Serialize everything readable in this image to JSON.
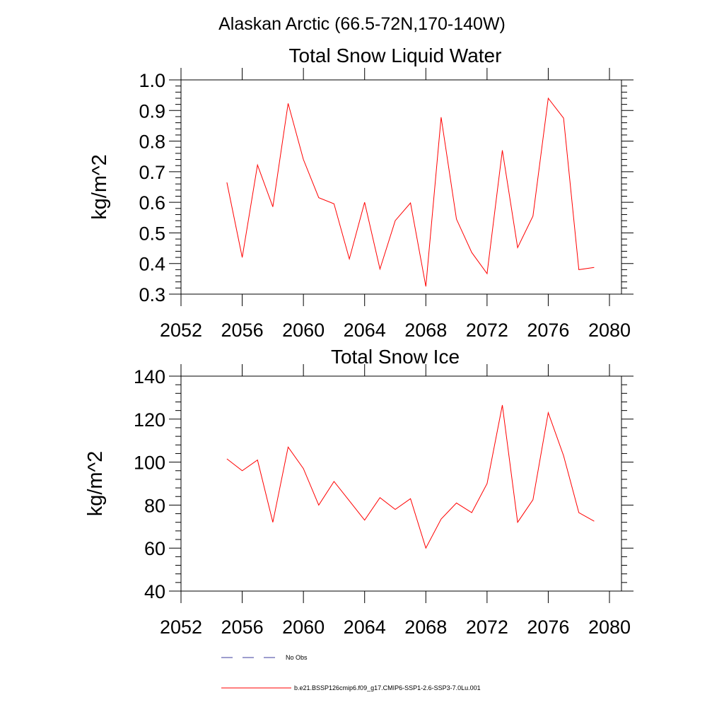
{
  "figure": {
    "main_title": "Alaskan Arctic (66.5-72N,170-140W)"
  },
  "legend": {
    "items": [
      {
        "label": "No Obs",
        "color": "#3b3b9e",
        "style": "dashed"
      },
      {
        "label": "b.e21.BSSP126cmip6.f09_g17.CMIP6-SSP1-2.6-SSP3-7.0Lu.001",
        "color": "#ff0000",
        "style": "solid"
      }
    ]
  },
  "chart_data": [
    {
      "type": "line",
      "title": "Total Snow Liquid Water",
      "xlabel": "",
      "ylabel": "kg/m^2",
      "xlim": [
        2052,
        2080
      ],
      "ylim": [
        0.3,
        1.0
      ],
      "xticks": [
        "2052",
        "2056",
        "2060",
        "2064",
        "2068",
        "2072",
        "2076",
        "2080"
      ],
      "yticks": [
        "0.3",
        "0.4",
        "0.5",
        "0.6",
        "0.7",
        "0.8",
        "0.9",
        "1.0"
      ],
      "grid": false,
      "series": [
        {
          "name": "b.e21.BSSP126cmip6.f09_g17.CMIP6-SSP1-2.6-SSP3-7.0Lu.001",
          "color": "#ff0000",
          "x": [
            2055,
            2056,
            2057,
            2058,
            2059,
            2060,
            2061,
            2062,
            2063,
            2064,
            2065,
            2066,
            2067,
            2068,
            2069,
            2070,
            2071,
            2072,
            2073,
            2074,
            2075,
            2076,
            2077,
            2078,
            2079
          ],
          "y": [
            0.665,
            0.42,
            0.722,
            0.585,
            0.923,
            0.74,
            0.615,
            0.595,
            0.415,
            0.6,
            0.382,
            0.54,
            0.598,
            0.325,
            0.878,
            0.545,
            0.436,
            0.367,
            0.77,
            0.452,
            0.555,
            0.94,
            0.875,
            0.38,
            0.387
          ]
        }
      ]
    },
    {
      "type": "line",
      "title": "Total Snow Ice",
      "xlabel": "",
      "ylabel": "kg/m^2",
      "xlim": [
        2052,
        2080
      ],
      "ylim": [
        40,
        140
      ],
      "xticks": [
        "2052",
        "2056",
        "2060",
        "2064",
        "2068",
        "2072",
        "2076",
        "2080"
      ],
      "yticks": [
        "40",
        "60",
        "80",
        "100",
        "120",
        "140"
      ],
      "grid": false,
      "series": [
        {
          "name": "b.e21.BSSP126cmip6.f09_g17.CMIP6-SSP1-2.6-SSP3-7.0Lu.001",
          "color": "#ff0000",
          "x": [
            2055,
            2056,
            2057,
            2058,
            2059,
            2060,
            2061,
            2062,
            2063,
            2064,
            2065,
            2066,
            2067,
            2068,
            2069,
            2070,
            2071,
            2072,
            2073,
            2074,
            2075,
            2076,
            2077,
            2078,
            2079
          ],
          "y": [
            101.5,
            96,
            101,
            72,
            107,
            97,
            80,
            91,
            82,
            73,
            83.5,
            78,
            83,
            60,
            73.5,
            81,
            76.5,
            90,
            126.5,
            72,
            82.5,
            123,
            103,
            76.5,
            72.5
          ]
        }
      ]
    }
  ]
}
